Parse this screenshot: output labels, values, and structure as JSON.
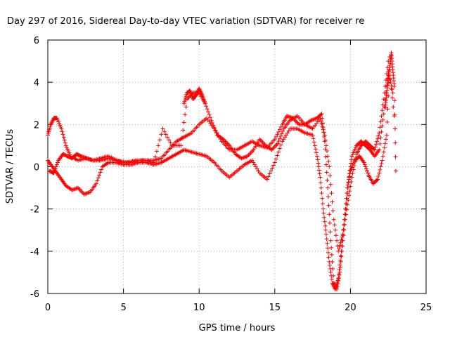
{
  "chart_data": {
    "type": "scatter",
    "title": "Day 297 of 2016, Sidereal Day-to-day VTEC variation (SDTVAR) for receiver re",
    "xlabel": "GPS time / hours",
    "ylabel": "SDTVAR / TECUs",
    "xlim": [
      0,
      25
    ],
    "ylim": [
      -6,
      6
    ],
    "x_ticks": [
      "0",
      "5",
      "10",
      "15",
      "20",
      "25"
    ],
    "y_ticks": [
      "-6",
      "-4",
      "-2",
      "0",
      "2",
      "4",
      "6"
    ],
    "grid": true,
    "marker": "plus",
    "marker_color": "#ff0000",
    "series": [
      {
        "x": [
          0.0,
          0.2,
          0.4,
          0.6,
          0.9,
          1.2,
          1.5,
          2.0,
          2.5,
          3.0,
          3.5,
          4.0,
          4.5,
          5.0,
          5.5,
          6.0,
          6.5,
          7.0,
          7.5,
          8.0,
          8.5,
          9.0,
          9.5,
          10.0,
          10.5,
          11.0,
          11.5,
          12.0,
          12.5,
          13.0,
          13.5,
          14.0,
          14.5,
          15.0,
          15.5,
          15.8,
          16.2,
          16.6,
          17.0,
          17.4,
          17.8,
          18.1,
          18.3,
          18.5,
          18.7,
          18.9,
          19.1,
          19.3,
          19.5,
          19.7,
          19.9,
          20.1,
          20.4,
          20.7,
          21.0,
          21.3,
          21.6,
          21.9,
          22.2,
          22.5,
          22.8
        ],
        "y": [
          1.5,
          2.0,
          2.3,
          2.3,
          1.8,
          1.0,
          0.5,
          0.3,
          0.4,
          0.3,
          0.3,
          0.4,
          0.3,
          0.2,
          0.2,
          0.3,
          0.3,
          0.3,
          0.4,
          0.8,
          1.2,
          1.4,
          1.6,
          2.0,
          2.3,
          1.8,
          1.2,
          0.8,
          0.8,
          1.0,
          1.2,
          1.0,
          0.9,
          1.3,
          2.0,
          2.4,
          2.3,
          2.0,
          2.0,
          2.2,
          2.3,
          2.5,
          1.2,
          -1.0,
          -3.5,
          -5.5,
          -5.8,
          -5.0,
          -3.5,
          -2.0,
          -0.5,
          0.5,
          1.0,
          1.2,
          1.0,
          0.8,
          0.5,
          0.8,
          2.5,
          4.5,
          3.5
        ]
      },
      {
        "x": [
          0.0,
          0.3,
          0.6,
          0.9,
          1.2,
          1.6,
          2.0,
          2.4,
          2.8,
          3.2,
          3.6,
          4.0,
          4.5,
          5.0,
          5.5,
          6.0,
          6.5,
          7.0,
          7.5,
          8.0,
          8.5,
          9.0,
          9.5,
          10.0,
          10.5,
          11.0,
          11.5,
          12.0,
          12.5,
          13.0,
          13.5,
          14.0,
          14.5,
          15.0,
          15.5,
          16.0,
          16.5,
          17.0,
          17.5,
          17.8,
          18.0,
          18.2,
          18.4,
          18.6,
          18.8,
          19.0,
          19.2,
          19.4,
          19.6,
          19.8,
          20.0,
          20.3,
          20.6,
          20.9,
          21.2,
          21.5,
          21.8,
          22.1,
          22.4,
          22.6
        ],
        "y": [
          0.3,
          0.0,
          -0.3,
          -0.6,
          -0.9,
          -1.1,
          -1.0,
          -1.3,
          -1.2,
          -0.8,
          0.0,
          0.2,
          0.2,
          0.1,
          0.1,
          0.2,
          0.2,
          0.1,
          0.2,
          0.4,
          0.6,
          0.8,
          0.7,
          0.6,
          0.5,
          0.2,
          -0.2,
          -0.5,
          -0.2,
          0.1,
          0.3,
          -0.3,
          -0.6,
          0.2,
          1.2,
          1.8,
          1.8,
          1.6,
          1.5,
          0.5,
          -0.5,
          -2.0,
          -3.2,
          -4.5,
          -5.5,
          -5.8,
          -5.3,
          -4.0,
          -2.5,
          -1.0,
          -0.2,
          0.3,
          0.5,
          0.2,
          -0.4,
          -0.8,
          -0.6,
          0.3,
          1.5,
          5.2
        ]
      },
      {
        "x": [
          0.1,
          0.4,
          0.7,
          1.0,
          1.3,
          1.6,
          1.9,
          2.2,
          2.6,
          3.0,
          3.5,
          4.0,
          4.6,
          5.2,
          5.8,
          6.4,
          7.0,
          7.6,
          8.2,
          8.8,
          9.2,
          9.6,
          10.0,
          10.4,
          10.8,
          11.2,
          11.6,
          12.0,
          12.4,
          12.8,
          13.2,
          13.6,
          14.0,
          14.4,
          14.8,
          15.2,
          15.6,
          16.0,
          16.5,
          17.0,
          17.5,
          18.0,
          18.3,
          18.6,
          18.9,
          19.2,
          19.5,
          19.8,
          20.1,
          20.4,
          20.7,
          21.0,
          21.3,
          21.6,
          21.9,
          22.2,
          22.5,
          22.9
        ],
        "y": [
          -0.2,
          -0.3,
          0.3,
          0.6,
          0.5,
          0.4,
          0.6,
          0.5,
          0.4,
          0.3,
          0.4,
          0.5,
          0.3,
          0.2,
          0.3,
          0.3,
          0.2,
          1.8,
          1.0,
          1.0,
          3.2,
          3.5,
          3.5,
          3.0,
          2.2,
          1.5,
          1.3,
          1.0,
          0.6,
          0.4,
          0.5,
          0.8,
          1.3,
          1.0,
          0.8,
          1.1,
          1.8,
          2.2,
          2.4,
          2.0,
          1.8,
          2.3,
          1.5,
          0.0,
          -2.5,
          -4.0,
          -3.2,
          -1.8,
          -0.5,
          0.6,
          1.0,
          1.2,
          1.0,
          0.8,
          1.6,
          3.2,
          5.0,
          2.4
        ]
      },
      {
        "x": [
          9.0,
          9.2,
          9.4,
          9.6,
          9.8,
          10.0,
          10.2,
          10.4,
          22.3,
          22.4,
          22.5,
          22.6,
          22.7,
          22.8,
          22.9,
          23.0
        ],
        "y": [
          3.0,
          3.5,
          3.6,
          3.2,
          3.4,
          3.7,
          3.4,
          3.0,
          2.8,
          3.5,
          4.2,
          4.8,
          5.4,
          4.6,
          3.8,
          -0.2
        ]
      }
    ]
  }
}
